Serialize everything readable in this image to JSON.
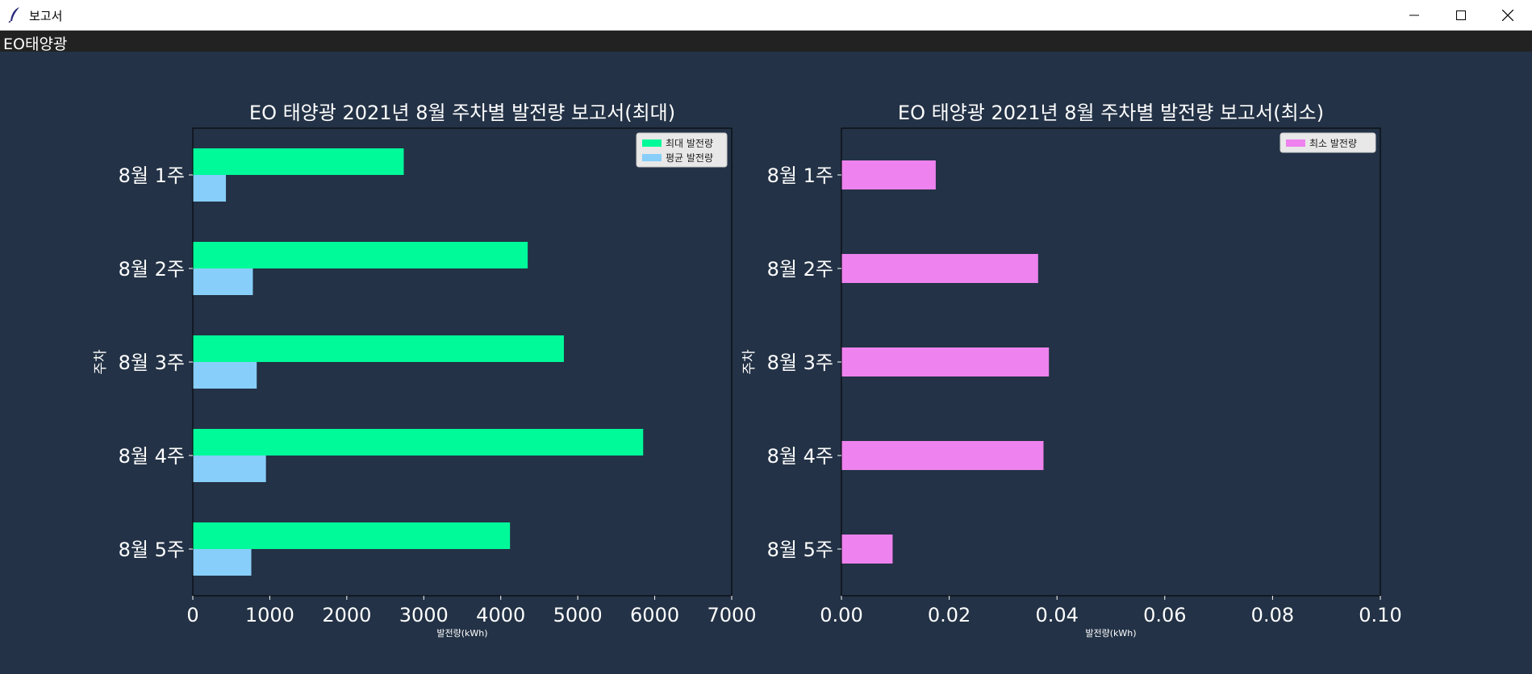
{
  "window": {
    "title": "보고서",
    "menu_label": "EO태양광"
  },
  "colors": {
    "background": "#233246",
    "max": "#00fa9a",
    "avg": "#87cefa",
    "min": "#ee82ee"
  },
  "chart_data": [
    {
      "type": "bar",
      "orientation": "horizontal",
      "title": "EO 태양광 2021년 8월 주차별 발전량 보고서(최대)",
      "xlabel": "발전량(kWh)",
      "ylabel": "주차",
      "categories": [
        "8월 1주",
        "8월 2주",
        "8월 3주",
        "8월 4주",
        "8월 5주"
      ],
      "series": [
        {
          "name": "최대 발전량",
          "color": "#00fa9a",
          "values": [
            2740,
            4350,
            4820,
            5850,
            4120
          ]
        },
        {
          "name": "평균 발전량",
          "color": "#87cefa",
          "values": [
            430,
            780,
            830,
            950,
            760
          ]
        }
      ],
      "xlim": [
        0,
        7000
      ],
      "xticks": [
        "0",
        "1000",
        "2000",
        "3000",
        "4000",
        "5000",
        "6000",
        "7000"
      ],
      "legend": "top-right",
      "grid": false
    },
    {
      "type": "bar",
      "orientation": "horizontal",
      "title": "EO 태양광 2021년 8월 주차별 발전량 보고서(최소)",
      "xlabel": "발전량(kWh)",
      "ylabel": "주차",
      "categories": [
        "8월 1주",
        "8월 2주",
        "8월 3주",
        "8월 4주",
        "8월 5주"
      ],
      "series": [
        {
          "name": "최소 발전량",
          "color": "#ee82ee",
          "values": [
            0.0175,
            0.0365,
            0.0385,
            0.0375,
            0.0095
          ]
        }
      ],
      "xlim": [
        0,
        0.1
      ],
      "xticks": [
        "0.00",
        "0.02",
        "0.04",
        "0.06",
        "0.08",
        "0.10"
      ],
      "legend": "top-right",
      "grid": false
    }
  ]
}
